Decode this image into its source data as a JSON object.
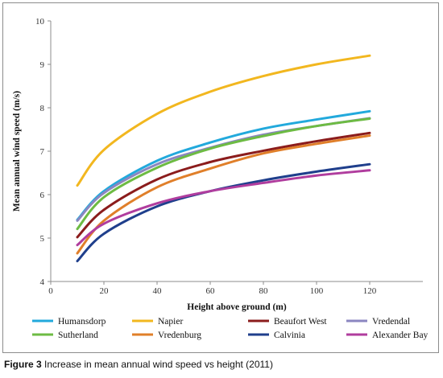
{
  "chart_data": {
    "type": "line",
    "title": "",
    "xlabel": "Height above ground (m)",
    "ylabel": "Mean annual wind speed (m/s)",
    "xlim": [
      0,
      140
    ],
    "ylim": [
      4,
      10
    ],
    "xticks": [
      0,
      20,
      40,
      60,
      80,
      100,
      120
    ],
    "yticks": [
      4,
      5,
      6,
      7,
      8,
      9,
      10
    ],
    "grid": false,
    "legend_position": "bottom",
    "x": [
      10,
      20,
      40,
      60,
      80,
      100,
      120
    ],
    "series": [
      {
        "name": "Humansdorp",
        "color": "#22a9dc",
        "values": [
          5.42,
          6.08,
          6.78,
          7.2,
          7.52,
          7.73,
          7.92
        ]
      },
      {
        "name": "Napier",
        "color": "#f2b71f",
        "values": [
          6.21,
          7.03,
          7.86,
          8.37,
          8.73,
          9.0,
          9.2
        ]
      },
      {
        "name": "Beaufort West",
        "color": "#8b1c1c",
        "values": [
          5.02,
          5.65,
          6.35,
          6.75,
          7.01,
          7.23,
          7.42
        ]
      },
      {
        "name": "Vredendal",
        "color": "#8b86c0",
        "values": [
          5.4,
          6.04,
          6.7,
          7.08,
          7.38,
          7.58,
          7.76
        ]
      },
      {
        "name": "Sutherland",
        "color": "#6dbb43",
        "values": [
          5.21,
          5.94,
          6.62,
          7.06,
          7.35,
          7.58,
          7.75
        ]
      },
      {
        "name": "Vredenburg",
        "color": "#e07f2a",
        "values": [
          4.65,
          5.4,
          6.17,
          6.6,
          6.95,
          7.17,
          7.36
        ]
      },
      {
        "name": "Calvinia",
        "color": "#1f3f8c",
        "values": [
          4.47,
          5.1,
          5.73,
          6.08,
          6.33,
          6.53,
          6.7
        ]
      },
      {
        "name": "Alexander Bay",
        "color": "#b03d9e",
        "values": [
          4.84,
          5.33,
          5.8,
          6.08,
          6.27,
          6.44,
          6.56
        ]
      }
    ]
  },
  "caption": {
    "label": "Figure 3",
    "text": " Increase in mean annual wind speed vs height (2011)"
  }
}
